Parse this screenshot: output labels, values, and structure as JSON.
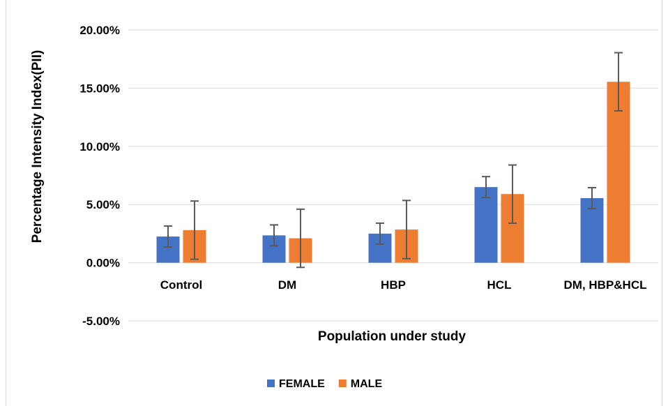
{
  "chart_data": {
    "type": "bar",
    "categories": [
      "Control",
      "DM",
      "HBP",
      "HCL",
      "DM, HBP&HCL"
    ],
    "series": [
      {
        "name": "FEMALE",
        "color": "#4472C4",
        "values": [
          2.25,
          2.35,
          2.5,
          6.5,
          5.55
        ],
        "errors": [
          0.9,
          0.9,
          0.9,
          0.9,
          0.9
        ]
      },
      {
        "name": "MALE",
        "color": "#ED7D31",
        "values": [
          2.8,
          2.1,
          2.85,
          5.9,
          15.55
        ],
        "errors": [
          2.5,
          2.5,
          2.5,
          2.5,
          2.5
        ]
      }
    ],
    "xlabel": "Population under study",
    "ylabel": "Percentage Intensity Index(PII)",
    "ylim": [
      -5,
      20
    ],
    "yticks": [
      20,
      15,
      10,
      5,
      0,
      -5
    ],
    "ytick_labels": [
      "20.00%",
      "15.00%",
      "10.00%",
      "5.00%",
      "0.00%",
      "-5.00%"
    ],
    "grid": true,
    "legend": "bottom-center",
    "error_bar_color": "#595959",
    "gridline_color": "#d9d9d9"
  }
}
